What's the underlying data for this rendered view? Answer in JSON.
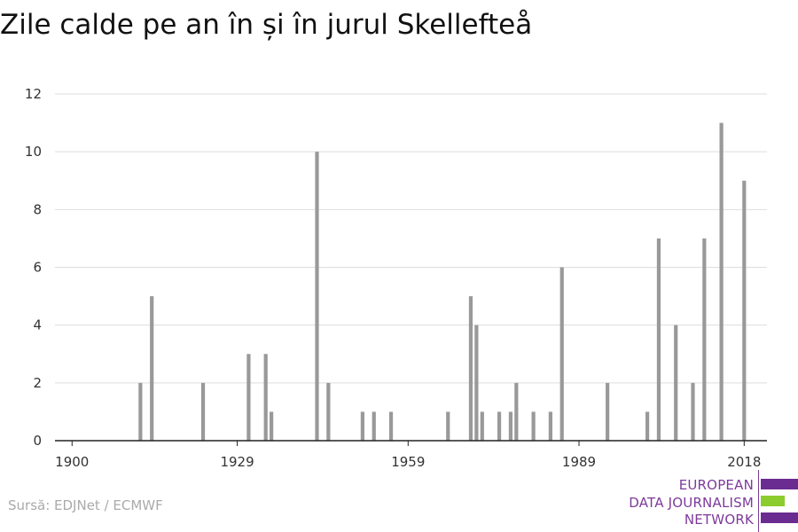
{
  "title": "Zile calde pe an în și în jurul Skellefteå",
  "source": "Sursă: EDJNet / ECMWF",
  "logo": {
    "line1": "EUROPEAN",
    "line2": "DATA JOURNALISM",
    "line3": "NETWORK",
    "colors": {
      "purple": "#6a2c91",
      "green": "#8ccc2e",
      "text": "#7d3a9a"
    }
  },
  "colors": {
    "bar": "#999999",
    "grid": "#dddddd",
    "axis": "#222222",
    "tick_text": "#333333"
  },
  "chart_data": {
    "type": "bar",
    "title": "Zile calde pe an în și în jurul Skellefteå",
    "xlabel": "",
    "ylabel": "",
    "xlim": [
      1897,
      2022
    ],
    "ylim": [
      0,
      12
    ],
    "x_ticks": [
      1900,
      1929,
      1959,
      1989,
      2018
    ],
    "y_ticks": [
      0,
      2,
      4,
      6,
      8,
      10,
      12
    ],
    "grid": true,
    "legend": "none",
    "x": [
      1912,
      1914,
      1923,
      1931,
      1934,
      1935,
      1943,
      1945,
      1951,
      1953,
      1956,
      1966,
      1970,
      1971,
      1972,
      1975,
      1977,
      1978,
      1981,
      1984,
      1986,
      1994,
      2001,
      2003,
      2006,
      2009,
      2011,
      2014,
      2018
    ],
    "values": [
      2,
      5,
      2,
      3,
      3,
      1,
      10,
      2,
      1,
      1,
      1,
      1,
      5,
      4,
      1,
      1,
      1,
      2,
      1,
      1,
      6,
      2,
      1,
      7,
      4,
      2,
      7,
      11,
      9
    ]
  }
}
